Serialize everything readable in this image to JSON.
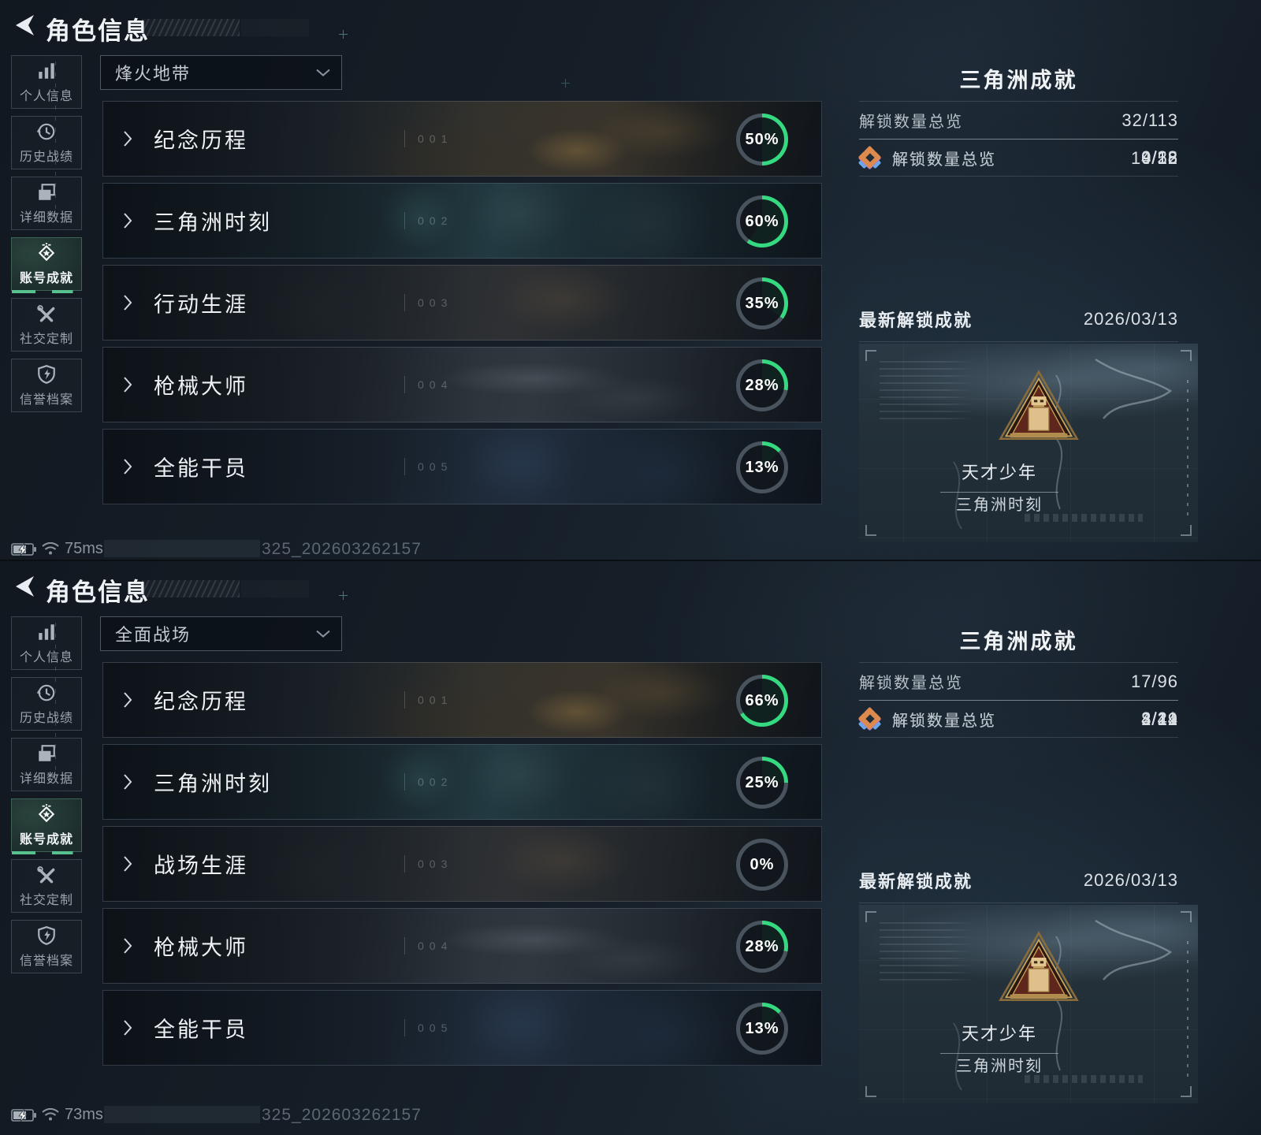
{
  "colors": {
    "green": "#35d97f",
    "ring_track": "#49535d",
    "underline_green": "#57c28f",
    "tier_teal": "#2fcf8e",
    "tier_blue": "#6ba6e8",
    "tier_purple": "#a678e8",
    "tier_orange": "#dd8a4e"
  },
  "screens": [
    {
      "header": {
        "title": "角色信息"
      },
      "sidebar": [
        {
          "label": "个人信息",
          "icon": "bar-chart",
          "selected": false
        },
        {
          "label": "历史战绩",
          "icon": "history-clock",
          "selected": false
        },
        {
          "label": "详细数据",
          "icon": "documents",
          "selected": false
        },
        {
          "label": "账号成就",
          "icon": "achievement-badge",
          "selected": true
        },
        {
          "label": "社交定制",
          "icon": "tools",
          "selected": false
        },
        {
          "label": "信誉档案",
          "icon": "shield",
          "selected": false
        }
      ],
      "mode_dropdown": {
        "value": "烽火地带"
      },
      "rows": [
        {
          "index": "001",
          "title": "纪念历程",
          "percent": 50,
          "percent_label": "50%"
        },
        {
          "index": "002",
          "title": "三角洲时刻",
          "percent": 60,
          "percent_label": "60%"
        },
        {
          "index": "003",
          "title": "行动生涯",
          "percent": 35,
          "percent_label": "35%"
        },
        {
          "index": "004",
          "title": "枪械大师",
          "percent": 28,
          "percent_label": "28%"
        },
        {
          "index": "005",
          "title": "全能干员",
          "percent": 13,
          "percent_label": "13%"
        }
      ],
      "panel": {
        "title": "三角洲成就",
        "total_label": "解锁数量总览",
        "total_value": "32/113",
        "tiers": [
          {
            "label": "解锁数量总览",
            "value": "9/18",
            "tier": "teal",
            "color": "#2fcf8e"
          },
          {
            "label": "解锁数量总览",
            "value": "10/52",
            "tier": "blue",
            "color": "#6ba6e8"
          },
          {
            "label": "解锁数量总览",
            "value": "4/15",
            "tier": "purple",
            "color": "#a678e8"
          },
          {
            "label": "解锁数量总览",
            "value": "9/28",
            "tier": "orange",
            "color": "#dd8a4e"
          }
        ],
        "latest_label": "最新解锁成就",
        "latest_value": "2026/03/13",
        "badge": {
          "name": "天才少年",
          "category": "三角洲时刻"
        }
      },
      "status": {
        "ping": "75ms",
        "watermark": "325_202603262157"
      }
    },
    {
      "header": {
        "title": "角色信息"
      },
      "sidebar": [
        {
          "label": "个人信息",
          "icon": "bar-chart",
          "selected": false
        },
        {
          "label": "历史战绩",
          "icon": "history-clock",
          "selected": false
        },
        {
          "label": "详细数据",
          "icon": "documents",
          "selected": false
        },
        {
          "label": "账号成就",
          "icon": "achievement-badge",
          "selected": true
        },
        {
          "label": "社交定制",
          "icon": "tools",
          "selected": false
        },
        {
          "label": "信誉档案",
          "icon": "shield",
          "selected": false
        }
      ],
      "mode_dropdown": {
        "value": "全面战场"
      },
      "rows": [
        {
          "index": "001",
          "title": "纪念历程",
          "percent": 66,
          "percent_label": "66%"
        },
        {
          "index": "002",
          "title": "三角洲时刻",
          "percent": 25,
          "percent_label": "25%"
        },
        {
          "index": "003",
          "title": "战场生涯",
          "percent": 0,
          "percent_label": "0%"
        },
        {
          "index": "004",
          "title": "枪械大师",
          "percent": 28,
          "percent_label": "28%"
        },
        {
          "index": "005",
          "title": "全能干员",
          "percent": 13,
          "percent_label": "13%"
        }
      ],
      "panel": {
        "title": "三角洲成就",
        "total_label": "解锁数量总览",
        "total_value": "17/96",
        "tiers": [
          {
            "label": "解锁数量总览",
            "value": "4/14",
            "tier": "teal",
            "color": "#2fcf8e"
          },
          {
            "label": "解锁数量总览",
            "value": "8/49",
            "tier": "blue",
            "color": "#6ba6e8"
          },
          {
            "label": "解锁数量总览",
            "value": "2/12",
            "tier": "purple",
            "color": "#a678e8"
          },
          {
            "label": "解锁数量总览",
            "value": "3/21",
            "tier": "orange",
            "color": "#dd8a4e"
          }
        ],
        "latest_label": "最新解锁成就",
        "latest_value": "2026/03/13",
        "badge": {
          "name": "天才少年",
          "category": "三角洲时刻"
        }
      },
      "status": {
        "ping": "73ms",
        "watermark": "325_202603262157"
      }
    }
  ]
}
